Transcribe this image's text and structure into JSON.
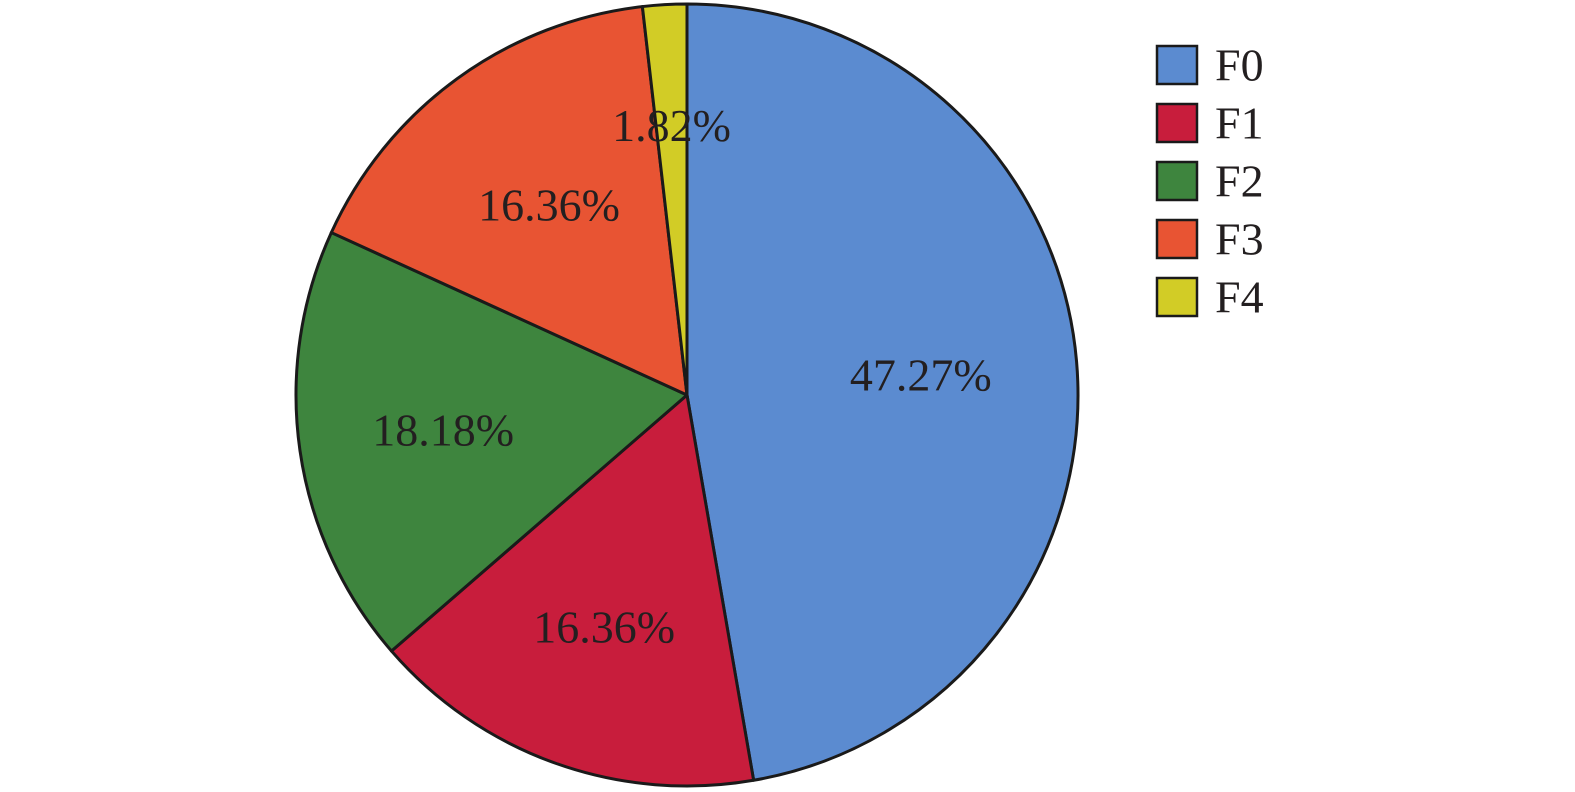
{
  "chart_data": {
    "type": "pie",
    "title": "",
    "legend_position": "top-right",
    "start_angle": "12 o'clock",
    "direction": "clockwise",
    "slices": [
      {
        "name": "F0",
        "value": 47.27,
        "label": "47.27%",
        "color": "#5b8bd0"
      },
      {
        "name": "F1",
        "value": 16.36,
        "label": "16.36%",
        "color": "#c81d3c"
      },
      {
        "name": "F2",
        "value": 18.18,
        "label": "18.18%",
        "color": "#3e853e"
      },
      {
        "name": "F3",
        "value": 16.36,
        "label": "16.36%",
        "color": "#e85433"
      },
      {
        "name": "F4",
        "value": 1.82,
        "label": "1.82%",
        "color": "#d2cc26"
      }
    ]
  }
}
